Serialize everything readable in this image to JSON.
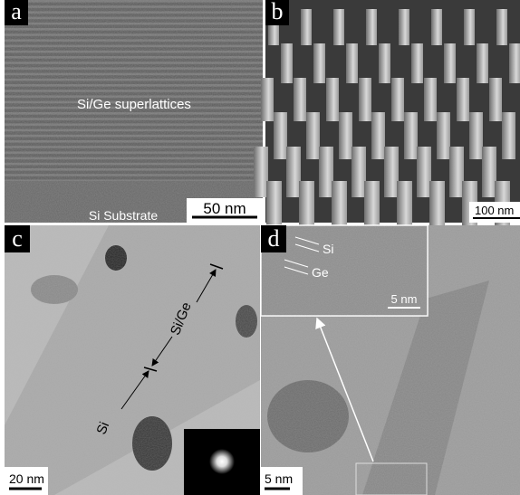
{
  "panels": [
    {
      "label": "a",
      "annotations": [
        "Si/Ge superlattices",
        "Si Substrate"
      ],
      "scale_bar": "50 nm"
    },
    {
      "label": "b",
      "scale_bar": "100 nm"
    },
    {
      "label": "c",
      "annotations": [
        "Si/Ge",
        "Si"
      ],
      "scale_bar": "20 nm"
    },
    {
      "label": "d",
      "inset": {
        "annotations": [
          "Si",
          "Ge"
        ],
        "scale_bar": "5 nm"
      },
      "scale_bar": "5 nm"
    }
  ]
}
